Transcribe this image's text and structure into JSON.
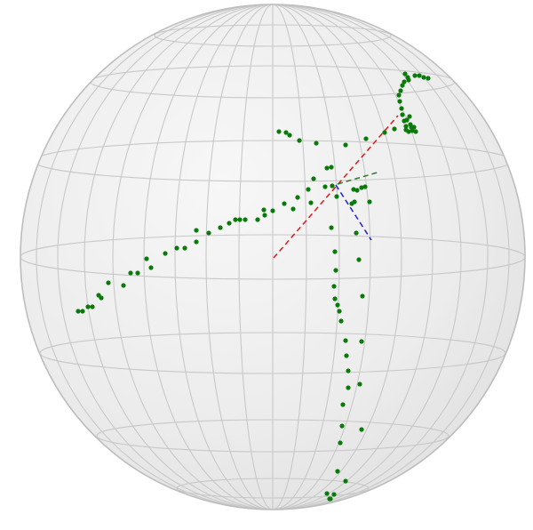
{
  "scene": {
    "sphere_fill": "#ebebeb",
    "sphere_edge": "#bdbdbd",
    "grid_color": "#c8c8c8",
    "point_color": "#0a7a0a",
    "axis_colors": {
      "x": "#d81b1b",
      "y": "#2a7a2a",
      "z": "#1f1fd0"
    }
  }
}
